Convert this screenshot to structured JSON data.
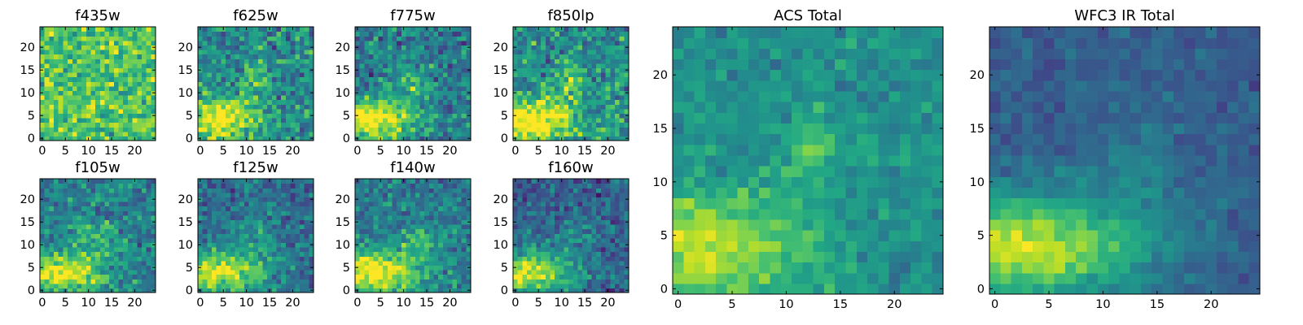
{
  "chart_data": [
    {
      "type": "heatmap",
      "title": "f435w",
      "xticks": [
        0,
        5,
        10,
        15,
        20
      ],
      "yticks": [
        0,
        5,
        10,
        15,
        20
      ],
      "xlim": [
        0,
        24
      ],
      "ylim": [
        0,
        24
      ],
      "nx": 25,
      "ny": 25,
      "colormap": "viridis",
      "blobs": [],
      "base": 0.72,
      "noise": 0.16,
      "seed": 11
    },
    {
      "type": "heatmap",
      "title": "f625w",
      "xticks": [
        0,
        5,
        10,
        15,
        20
      ],
      "yticks": [
        0,
        5,
        10,
        15,
        20
      ],
      "xlim": [
        0,
        24
      ],
      "ylim": [
        0,
        24
      ],
      "nx": 25,
      "ny": 25,
      "colormap": "viridis",
      "blobs": [
        {
          "x": 3,
          "y": 4,
          "amp": 0.55,
          "sx": 7,
          "sy": 3.2
        },
        {
          "x": 12,
          "y": 13,
          "amp": 0.25,
          "sx": 2,
          "sy": 2.5
        }
      ],
      "base": 0.48,
      "noise": 0.16,
      "seed": 22
    },
    {
      "type": "heatmap",
      "title": "f775w",
      "xticks": [
        0,
        5,
        10,
        15,
        20
      ],
      "yticks": [
        0,
        5,
        10,
        15,
        20
      ],
      "xlim": [
        0,
        24
      ],
      "ylim": [
        0,
        24
      ],
      "nx": 25,
      "ny": 25,
      "colormap": "viridis",
      "blobs": [
        {
          "x": 3,
          "y": 4,
          "amp": 0.6,
          "sx": 7,
          "sy": 3.2
        },
        {
          "x": 12,
          "y": 13,
          "amp": 0.3,
          "sx": 2,
          "sy": 2.5
        }
      ],
      "base": 0.42,
      "noise": 0.15,
      "seed": 33
    },
    {
      "type": "heatmap",
      "title": "f850lp",
      "xticks": [
        0,
        5,
        10,
        15,
        20
      ],
      "yticks": [
        0,
        5,
        10,
        15,
        20
      ],
      "xlim": [
        0,
        24
      ],
      "ylim": [
        0,
        24
      ],
      "nx": 25,
      "ny": 25,
      "colormap": "viridis",
      "blobs": [
        {
          "x": 3,
          "y": 4,
          "amp": 0.6,
          "sx": 7,
          "sy": 3.2
        },
        {
          "x": 12,
          "y": 13,
          "amp": 0.28,
          "sx": 2,
          "sy": 2.5
        }
      ],
      "base": 0.5,
      "noise": 0.16,
      "seed": 44
    },
    {
      "type": "heatmap",
      "title": "f105w",
      "xticks": [
        0,
        5,
        10,
        15,
        20
      ],
      "yticks": [
        0,
        5,
        10,
        15,
        20
      ],
      "xlim": [
        0,
        24
      ],
      "ylim": [
        0,
        24
      ],
      "nx": 25,
      "ny": 25,
      "colormap": "viridis",
      "blobs": [
        {
          "x": 4,
          "y": 4,
          "amp": 0.55,
          "sx": 7,
          "sy": 3.5
        },
        {
          "x": 13,
          "y": 12,
          "amp": 0.2,
          "sx": 3,
          "sy": 3
        }
      ],
      "base": 0.42,
      "noise": 0.14,
      "seed": 55
    },
    {
      "type": "heatmap",
      "title": "f125w",
      "xticks": [
        0,
        5,
        10,
        15,
        20
      ],
      "yticks": [
        0,
        5,
        10,
        15,
        20
      ],
      "xlim": [
        0,
        24
      ],
      "ylim": [
        0,
        24
      ],
      "nx": 25,
      "ny": 25,
      "colormap": "viridis",
      "blobs": [
        {
          "x": 4,
          "y": 4,
          "amp": 0.6,
          "sx": 7,
          "sy": 3.5
        },
        {
          "x": 13,
          "y": 12,
          "amp": 0.2,
          "sx": 3,
          "sy": 3
        }
      ],
      "base": 0.36,
      "noise": 0.12,
      "seed": 66
    },
    {
      "type": "heatmap",
      "title": "f140w",
      "xticks": [
        0,
        5,
        10,
        15,
        20
      ],
      "yticks": [
        0,
        5,
        10,
        15,
        20
      ],
      "xlim": [
        0,
        24
      ],
      "ylim": [
        0,
        24
      ],
      "nx": 25,
      "ny": 25,
      "colormap": "viridis",
      "blobs": [
        {
          "x": 4,
          "y": 4,
          "amp": 0.6,
          "sx": 7,
          "sy": 3.5
        },
        {
          "x": 13,
          "y": 12,
          "amp": 0.22,
          "sx": 3,
          "sy": 3
        }
      ],
      "base": 0.4,
      "noise": 0.13,
      "seed": 77
    },
    {
      "type": "heatmap",
      "title": "f160w",
      "xticks": [
        0,
        5,
        10,
        15,
        20
      ],
      "yticks": [
        0,
        5,
        10,
        15,
        20
      ],
      "xlim": [
        0,
        24
      ],
      "ylim": [
        0,
        24
      ],
      "nx": 25,
      "ny": 25,
      "colormap": "viridis",
      "blobs": [
        {
          "x": 3,
          "y": 4,
          "amp": 0.62,
          "sx": 7,
          "sy": 3.5
        },
        {
          "x": 13,
          "y": 12,
          "amp": 0.18,
          "sx": 3,
          "sy": 3
        }
      ],
      "base": 0.3,
      "noise": 0.12,
      "seed": 88
    },
    {
      "type": "heatmap",
      "title": "ACS Total",
      "xticks": [
        0,
        5,
        10,
        15,
        20
      ],
      "yticks": [
        0,
        5,
        10,
        15,
        20
      ],
      "xlim": [
        0,
        24
      ],
      "ylim": [
        0,
        24
      ],
      "nx": 25,
      "ny": 25,
      "colormap": "viridis",
      "blobs": [
        {
          "x": 2,
          "y": 4,
          "amp": 0.42,
          "sx": 7,
          "sy": 3.5
        },
        {
          "x": 12,
          "y": 13,
          "amp": 0.25,
          "sx": 1.6,
          "sy": 2.2
        }
      ],
      "base": 0.5,
      "noise": 0.08,
      "seed": 99
    },
    {
      "type": "heatmap",
      "title": "WFC3 IR Total",
      "xticks": [
        0,
        5,
        10,
        15,
        20
      ],
      "yticks": [
        0,
        5,
        10,
        15,
        20
      ],
      "xlim": [
        0,
        24
      ],
      "ylim": [
        0,
        24
      ],
      "nx": 25,
      "ny": 25,
      "colormap": "viridis",
      "blobs": [
        {
          "x": 3,
          "y": 4,
          "amp": 0.6,
          "sx": 8,
          "sy": 3.5
        },
        {
          "x": 13,
          "y": 12,
          "amp": 0.12,
          "sx": 3,
          "sy": 3
        }
      ],
      "base": 0.3,
      "noise": 0.06,
      "seed": 111
    }
  ]
}
